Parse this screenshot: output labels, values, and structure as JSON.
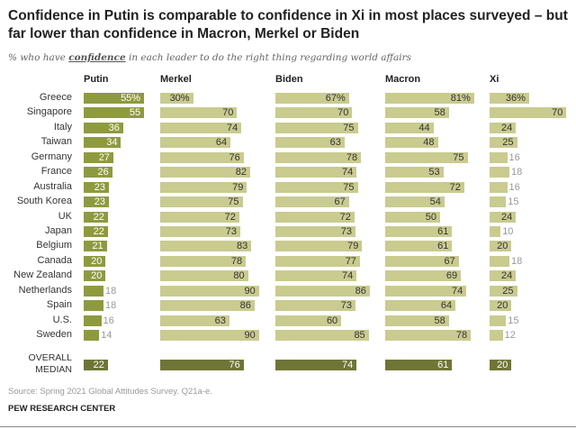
{
  "title": "Confidence in Putin is comparable to confidence in Xi in most places surveyed – but far lower than confidence in Macron, Merkel or Biden",
  "subtitle": {
    "pre": "% who have ",
    "emph": "confidence",
    "post": " in each leader to do the right thing regarding world affairs"
  },
  "source": "Source: Spring 2021 Global Attitudes Survey. Q21a-e.",
  "credit": "PEW RESEARCH CENTER",
  "colors": {
    "putin": "#8f9a3f",
    "others": "#c9cb8f",
    "median": "#6f7536",
    "text_dark": "#333333",
    "text_light": "#ffffff"
  },
  "chart_data": {
    "type": "bar",
    "orientation": "horizontal",
    "unit": "%",
    "categories": [
      "Greece",
      "Singapore",
      "Italy",
      "Taiwan",
      "Germany",
      "France",
      "Australia",
      "South Korea",
      "UK",
      "Japan",
      "Belgium",
      "Canada",
      "New Zealand",
      "Netherlands",
      "Spain",
      "U.S.",
      "Sweden"
    ],
    "series": [
      {
        "name": "Putin",
        "values": [
          55,
          55,
          36,
          34,
          27,
          26,
          23,
          23,
          22,
          22,
          21,
          20,
          20,
          18,
          18,
          16,
          14
        ],
        "median": 22
      },
      {
        "name": "Merkel",
        "values": [
          30,
          70,
          74,
          64,
          76,
          82,
          79,
          75,
          72,
          73,
          83,
          78,
          80,
          90,
          86,
          63,
          90
        ],
        "median": 76
      },
      {
        "name": "Biden",
        "values": [
          67,
          70,
          75,
          63,
          78,
          74,
          75,
          67,
          72,
          73,
          79,
          77,
          74,
          86,
          73,
          60,
          85
        ],
        "median": 74
      },
      {
        "name": "Macron",
        "values": [
          81,
          58,
          44,
          48,
          75,
          53,
          72,
          54,
          50,
          61,
          61,
          67,
          69,
          74,
          64,
          58,
          78
        ],
        "median": 61
      },
      {
        "name": "Xi",
        "values": [
          36,
          70,
          24,
          25,
          16,
          18,
          16,
          15,
          24,
          10,
          20,
          18,
          24,
          25,
          20,
          15,
          12
        ],
        "median": 20
      }
    ],
    "median_label": [
      "OVERALL",
      "MEDIAN"
    ],
    "xlim": [
      0,
      100
    ],
    "grid": false,
    "legend": "none"
  }
}
